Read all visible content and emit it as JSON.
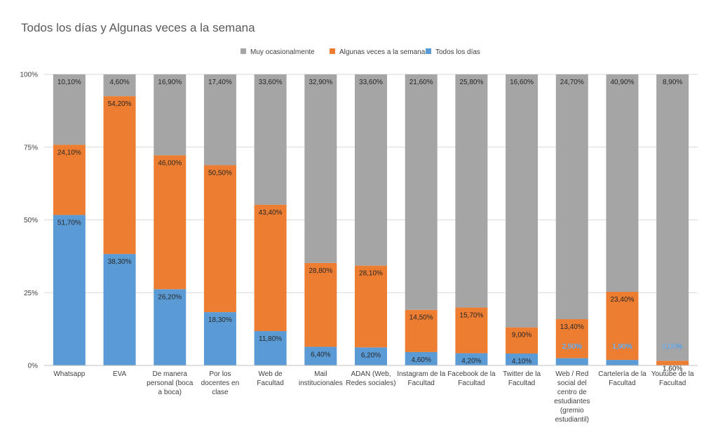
{
  "chart_data": {
    "type": "bar",
    "stacked": true,
    "percent_stacked": true,
    "title": "Todos los días y Algunas veces a la semana",
    "categories": [
      "Whatsapp",
      "EVA",
      "De manera personal (boca a boca)",
      "Por los docentes en clase",
      "Web de Facultad",
      "Mail institucionales",
      "ADAN (Web, Redes sociales)",
      "Instagram de la Facultad",
      "Facebook de la Facultad",
      "Twitter de la Facultad",
      "Web / Red social del centro de estudiantes (gremio estudiantil)",
      "Cartelería de la Facultad",
      "Youtube de la Facultad"
    ],
    "category_lines": [
      [
        "Whatsapp"
      ],
      [
        "EVA"
      ],
      [
        "De manera",
        "personal (boca",
        "a boca)"
      ],
      [
        "Por los",
        "docentes en",
        "clase"
      ],
      [
        "Web de",
        "Facultad"
      ],
      [
        "Mail",
        "institucionales"
      ],
      [
        "ADAN (Web,",
        "Redes sociales)"
      ],
      [
        "Instagram de la",
        "Facultad"
      ],
      [
        "Facebook de la",
        "Facultad"
      ],
      [
        "Twitter de la",
        "Facultad"
      ],
      [
        "Web / Red",
        "social del",
        "centro de",
        "estudiantes",
        "(gremio",
        "estudiantil)"
      ],
      [
        "Cartelería de la",
        "Facultad"
      ],
      [
        "Youtube de la",
        "Facultad"
      ]
    ],
    "series": [
      {
        "name": "Todos los días",
        "color": "#5b9bd5",
        "values": [
          51.7,
          38.3,
          26.2,
          18.3,
          11.8,
          6.4,
          6.2,
          4.6,
          4.2,
          4.1,
          2.5,
          1.9,
          0.0
        ],
        "labels": [
          "51,70%",
          "38,30%",
          "26,20%",
          "18,30%",
          "11,80%",
          "6,40%",
          "6,20%",
          "4,60%",
          "4,20%",
          "4,10%",
          "2,50%",
          "1,90%",
          "0,00%"
        ]
      },
      {
        "name": "Algunas veces a la semana",
        "color": "#ed7d31",
        "values": [
          24.1,
          54.2,
          46.0,
          50.5,
          43.4,
          28.8,
          28.1,
          14.5,
          15.7,
          9.0,
          13.4,
          23.4,
          1.6
        ],
        "labels": [
          "24,10%",
          "54,20%",
          "46,00%",
          "50,50%",
          "43,40%",
          "28,80%",
          "28,10%",
          "14,50%",
          "15,70%",
          "9,00%",
          "13,40%",
          "23,40%",
          "1,60%"
        ]
      },
      {
        "name": "Muy ocasionalmente",
        "color": "#a5a5a5",
        "values": [
          10.1,
          4.6,
          16.9,
          17.4,
          33.6,
          32.9,
          33.6,
          21.6,
          25.8,
          16.6,
          24.7,
          40.9,
          8.9
        ],
        "labels": [
          "10,10%",
          "4,60%",
          "16,90%",
          "17,40%",
          "33,60%",
          "32,90%",
          "33,60%",
          "21,60%",
          "25,80%",
          "16,60%",
          "24,70%",
          "40,90%",
          "8,90%"
        ]
      }
    ],
    "legend_order": [
      "Muy ocasionalmente",
      "Algunas veces a la semana",
      "Todos los días"
    ],
    "legend_position": "top",
    "y_ticks": [
      "0%",
      "25%",
      "50%",
      "75%",
      "100%"
    ],
    "ylim": [
      0,
      100
    ],
    "grid": true
  }
}
